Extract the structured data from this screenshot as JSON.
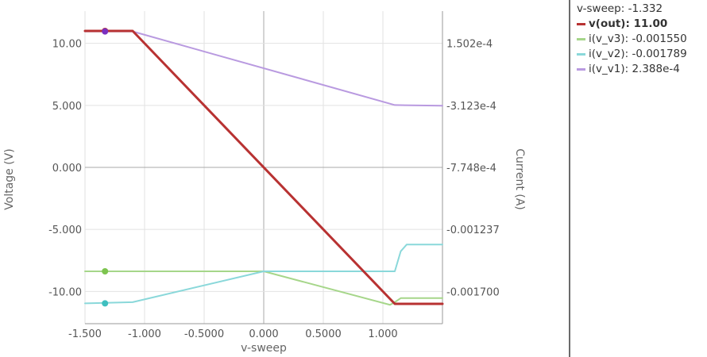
{
  "chart_data": {
    "type": "line",
    "xlabel": "v-sweep",
    "ylabel_left": "Voltage (V)",
    "ylabel_right": "Current (A)",
    "xlim": [
      -1.5,
      1.5
    ],
    "ylim_left": [
      -12.6,
      12.6
    ],
    "x_ticks": [
      -1.5,
      -1.0,
      -0.5,
      0.0,
      0.5,
      1.0
    ],
    "x_tick_labels": [
      "-1.500",
      "-1.000",
      "-0.5000",
      "0.000",
      "0.5000",
      "1.000"
    ],
    "y_left_ticks": [
      10,
      5,
      0,
      -5,
      -10
    ],
    "y_left_tick_labels": [
      "10.00",
      "5.000",
      "0.000",
      "-5.000",
      "-10.00"
    ],
    "y_right_ticks": [
      0.0001502,
      -0.0003123,
      -0.0007748,
      -0.001237,
      -0.0017
    ],
    "y_right_tick_labels": [
      "1.502e-4",
      "-3.123e-4",
      "-7.748e-4",
      "-0.001237",
      "-0.001700"
    ],
    "grid": true,
    "legend_position": "right",
    "cursor": {
      "x": -1.332,
      "label": "v-sweep: -1.332"
    },
    "series": [
      {
        "name": "v(out)",
        "axis": "left",
        "color": "#b83232",
        "legend_value": "11.00",
        "cursor_value": 11.0,
        "x": [
          -1.5,
          -1.1,
          1.1,
          1.5
        ],
        "y": [
          11.0,
          11.0,
          -11.0,
          -11.0
        ]
      },
      {
        "name": "i(v_v3)",
        "axis": "right",
        "color": "#a6d68a",
        "marker_color": "#7dc44f",
        "legend_value": "-0.001550",
        "cursor_value": -0.00155,
        "x": [
          -1.5,
          -1.1,
          0.0,
          1.06,
          1.1,
          1.15,
          1.5
        ],
        "y": [
          -0.00155,
          -0.00155,
          -0.00155,
          -0.0018,
          -0.00178,
          -0.00175,
          -0.00175
        ]
      },
      {
        "name": "i(v_v2)",
        "axis": "right",
        "color": "#8ad8da",
        "marker_color": "#3fbfbf",
        "legend_value": "-0.001789",
        "cursor_value": -0.001789,
        "x": [
          -1.5,
          -1.1,
          0.0,
          1.1,
          1.15,
          1.2,
          1.5
        ],
        "y": [
          -0.001789,
          -0.00178,
          -0.00155,
          -0.00155,
          -0.0014,
          -0.00135,
          -0.00135
        ]
      },
      {
        "name": "i(v_v1)",
        "axis": "right",
        "color": "#b99ae0",
        "marker_color": "#7b2fbf",
        "legend_value": "2.388e-4",
        "cursor_value": 0.0002388,
        "x": [
          -1.5,
          -1.1,
          1.1,
          1.5
        ],
        "y": [
          0.000239,
          0.000239,
          -0.00031,
          -0.000315
        ]
      }
    ]
  },
  "legend": {
    "header": "v-sweep: -1.332",
    "items": [
      {
        "name": "v(out)",
        "value": "11.00",
        "color": "#b83232",
        "bold": true
      },
      {
        "name": "i(v_v3)",
        "value": "-0.001550",
        "color": "#a6d68a",
        "bold": false
      },
      {
        "name": "i(v_v2)",
        "value": "-0.001789",
        "color": "#8ad8da",
        "bold": false
      },
      {
        "name": "i(v_v1)",
        "value": "2.388e-4",
        "color": "#b99ae0",
        "bold": false
      }
    ]
  }
}
